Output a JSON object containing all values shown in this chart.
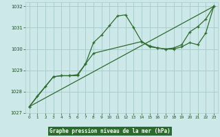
{
  "title": "Graphe pression niveau de la mer (hPa)",
  "background_color": "#cce8e8",
  "plot_bg_color": "#cce8e8",
  "grid_color": "#aacccc",
  "line_color": "#2d6a2d",
  "marker_color": "#2d6a2d",
  "text_color": "#1a4a1a",
  "title_bg": "#2d6a2d",
  "title_fg": "#ffffff",
  "xlim": [
    -0.5,
    23.5
  ],
  "ylim": [
    1027.0,
    1032.2
  ],
  "yticks": [
    1027,
    1028,
    1029,
    1030,
    1031,
    1032
  ],
  "xticks": [
    0,
    1,
    2,
    3,
    4,
    5,
    6,
    7,
    8,
    9,
    10,
    11,
    12,
    13,
    14,
    15,
    16,
    17,
    18,
    19,
    20,
    21,
    22,
    23
  ],
  "series1_x": [
    0,
    1,
    2,
    3,
    4,
    5,
    6,
    7,
    8,
    9,
    10,
    11,
    12,
    13,
    14,
    15,
    16,
    17,
    18,
    19,
    20,
    21,
    22,
    23
  ],
  "series1_y": [
    1027.3,
    1027.8,
    1028.25,
    1028.7,
    1028.75,
    1028.75,
    1028.75,
    1029.3,
    1030.3,
    1030.65,
    1031.1,
    1031.55,
    1031.6,
    1031.0,
    1030.35,
    1030.15,
    1030.05,
    1030.0,
    1030.05,
    1030.2,
    1030.8,
    1031.05,
    1031.4,
    1032.0
  ],
  "series2_x": [
    0,
    3,
    4,
    5,
    6,
    7,
    8,
    14,
    15,
    16,
    17,
    18,
    19,
    20,
    21,
    22,
    23
  ],
  "series2_y": [
    1027.3,
    1028.7,
    1028.75,
    1028.75,
    1028.8,
    1029.3,
    1029.8,
    1030.35,
    1030.1,
    1030.05,
    1030.0,
    1030.0,
    1030.1,
    1030.3,
    1030.2,
    1030.75,
    1032.0
  ],
  "series3_x": [
    0,
    23
  ],
  "series3_y": [
    1027.3,
    1032.0
  ]
}
